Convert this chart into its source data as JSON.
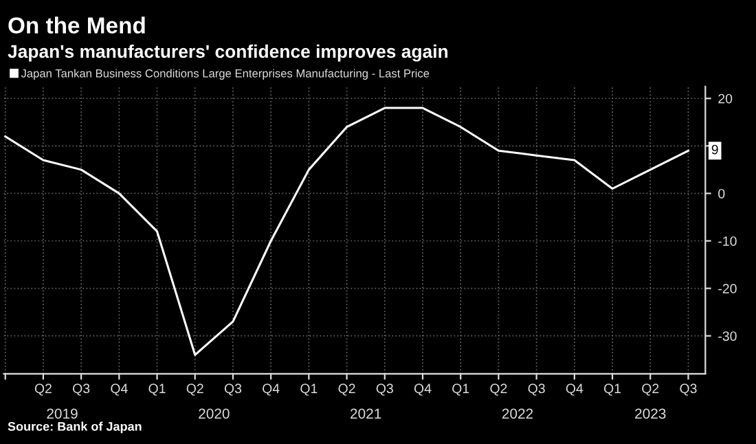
{
  "chart_data": {
    "type": "line",
    "title": "On the Mend",
    "subtitle": "Japan's manufacturers' confidence improves again",
    "categories": [
      null,
      "Q2",
      "Q3",
      "Q4",
      "Q1",
      "Q2",
      "Q3",
      "Q4",
      "Q1",
      "Q2",
      "Q3",
      "Q4",
      "Q1",
      "Q2",
      "Q3",
      "Q4",
      "Q1",
      "Q2",
      "Q3"
    ],
    "series": [
      {
        "name": "Japan Tankan Business Conditions Large Enterprises Manufacturing - Last Price",
        "color": "#ffffff",
        "values": [
          12,
          7,
          5,
          0,
          -8,
          -34,
          -27,
          -10,
          5,
          14,
          18,
          18,
          14,
          9,
          8,
          7,
          1,
          5,
          9
        ],
        "value_labels": [
          null,
          null,
          null,
          null,
          null,
          null,
          null,
          null,
          null,
          null,
          null,
          null,
          null,
          null,
          null,
          null,
          null,
          null,
          "9"
        ]
      }
    ],
    "ylim": [
      -38,
      22.5
    ],
    "yticks": [
      -30,
      -20,
      -10,
      0,
      {
        "value": 10,
        "label": null
      },
      20
    ],
    "grid": true,
    "legend": "top left",
    "line_style": "solid",
    "marker": "none",
    "annotations": [
      "2019",
      "2020",
      "2021",
      "2022",
      "2023",
      "Source: Bank of Japan"
    ]
  }
}
